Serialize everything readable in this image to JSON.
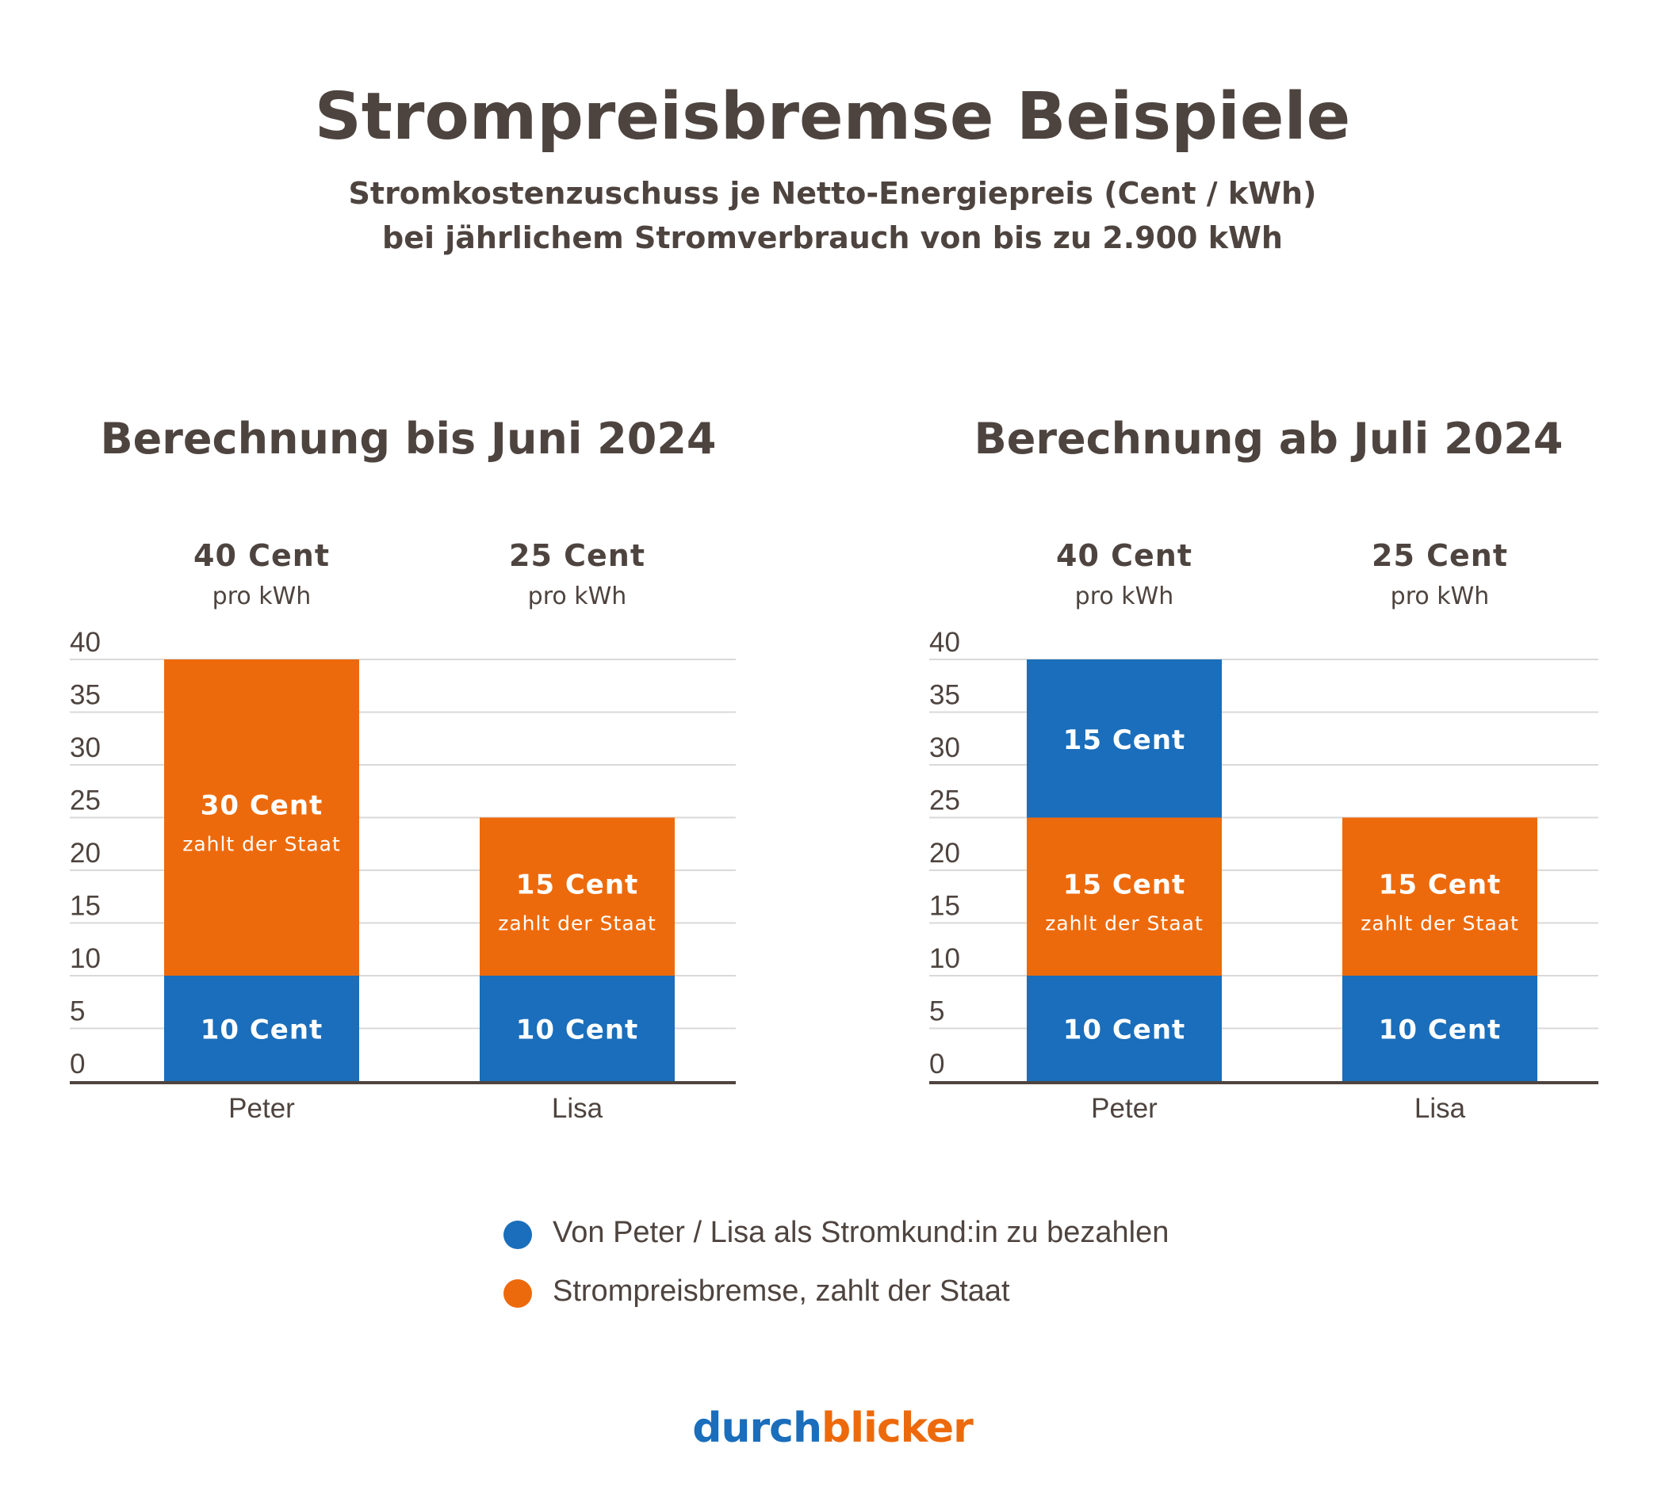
{
  "title": "Strompreisbremse Beispiele",
  "subtitle_line1": "Stromkostenzuschuss je Netto-Energiepreis (Cent / kWh)",
  "subtitle_line2": "bei jährlichem Stromverbrauch von bis zu 2.900 kWh",
  "colors": {
    "customer": "#1a6ebb",
    "state": "#ed6a0c",
    "text": "#4e443f",
    "grid": "#d9d9d9",
    "axis": "#4e443f"
  },
  "chart_data": [
    {
      "type": "bar",
      "stacked": true,
      "title": "Berechnung bis Juni 2024",
      "categories": [
        "Peter",
        "Lisa"
      ],
      "totals": [
        {
          "value": "40 Cent",
          "unit": "pro kWh"
        },
        {
          "value": "25 Cent",
          "unit": "pro kWh"
        }
      ],
      "yticks": [
        "0",
        "5",
        "10",
        "15",
        "20",
        "25",
        "30",
        "35",
        "40"
      ],
      "ylim": [
        0,
        40
      ],
      "grid": true,
      "segments": [
        [
          {
            "series": "customer",
            "value": 10,
            "label": "10 Cent",
            "sublabel": ""
          },
          {
            "series": "state",
            "value": 30,
            "label": "30 Cent",
            "sublabel": "zahlt der Staat"
          }
        ],
        [
          {
            "series": "customer",
            "value": 10,
            "label": "10 Cent",
            "sublabel": ""
          },
          {
            "series": "state",
            "value": 15,
            "label": "15 Cent",
            "sublabel": "zahlt der Staat"
          }
        ]
      ]
    },
    {
      "type": "bar",
      "stacked": true,
      "title": "Berechnung ab Juli 2024",
      "categories": [
        "Peter",
        "Lisa"
      ],
      "totals": [
        {
          "value": "40 Cent",
          "unit": "pro kWh"
        },
        {
          "value": "25 Cent",
          "unit": "pro kWh"
        }
      ],
      "yticks": [
        "0",
        "5",
        "10",
        "15",
        "20",
        "25",
        "30",
        "35",
        "40"
      ],
      "ylim": [
        0,
        40
      ],
      "grid": true,
      "segments": [
        [
          {
            "series": "customer",
            "value": 10,
            "label": "10 Cent",
            "sublabel": ""
          },
          {
            "series": "state",
            "value": 15,
            "label": "15 Cent",
            "sublabel": "zahlt der Staat"
          },
          {
            "series": "customer",
            "value": 15,
            "label": "15 Cent",
            "sublabel": ""
          }
        ],
        [
          {
            "series": "customer",
            "value": 10,
            "label": "10 Cent",
            "sublabel": ""
          },
          {
            "series": "state",
            "value": 15,
            "label": "15 Cent",
            "sublabel": "zahlt der Staat"
          }
        ]
      ]
    }
  ],
  "legend": [
    {
      "series": "customer",
      "label": "Von Peter / Lisa als Stromkund:in zu bezahlen"
    },
    {
      "series": "state",
      "label": "Strompreisbremse, zahlt der Staat"
    }
  ],
  "logo": {
    "part1": "durch",
    "part2": "blicker"
  }
}
